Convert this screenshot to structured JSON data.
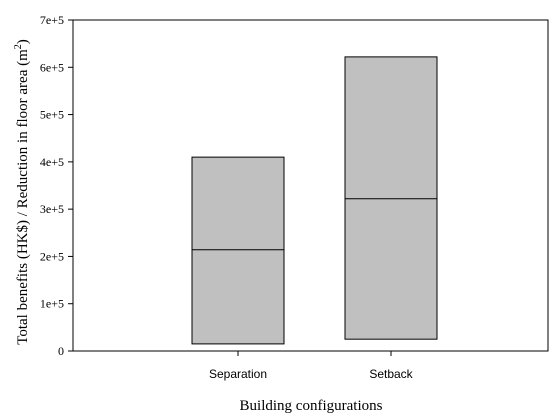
{
  "chart_data": {
    "type": "box",
    "title": "",
    "xlabel": "Building configurations",
    "ylabel": "Total benefits (HK$) / Reduction in floor area (m",
    "ylabel_superscript": "2",
    "ylabel_close": ")",
    "ylim": [
      0,
      700000
    ],
    "yticks": [
      {
        "value": 0,
        "label": "0"
      },
      {
        "value": 100000,
        "label": "1e+5"
      },
      {
        "value": 200000,
        "label": "2e+5"
      },
      {
        "value": 300000,
        "label": "3e+5"
      },
      {
        "value": 400000,
        "label": "4e+5"
      },
      {
        "value": 500000,
        "label": "5e+5"
      },
      {
        "value": 600000,
        "label": "6e+5"
      },
      {
        "value": 700000,
        "label": "7e+5"
      }
    ],
    "categories": [
      "Separation",
      "Setback"
    ],
    "boxes": [
      {
        "category": "Separation",
        "low": 15000,
        "median": 214000,
        "high": 410000
      },
      {
        "category": "Setback",
        "low": 25000,
        "median": 322000,
        "high": 622000
      }
    ],
    "box_fill": "#c0c0c0",
    "grid": false,
    "legend": "none"
  }
}
